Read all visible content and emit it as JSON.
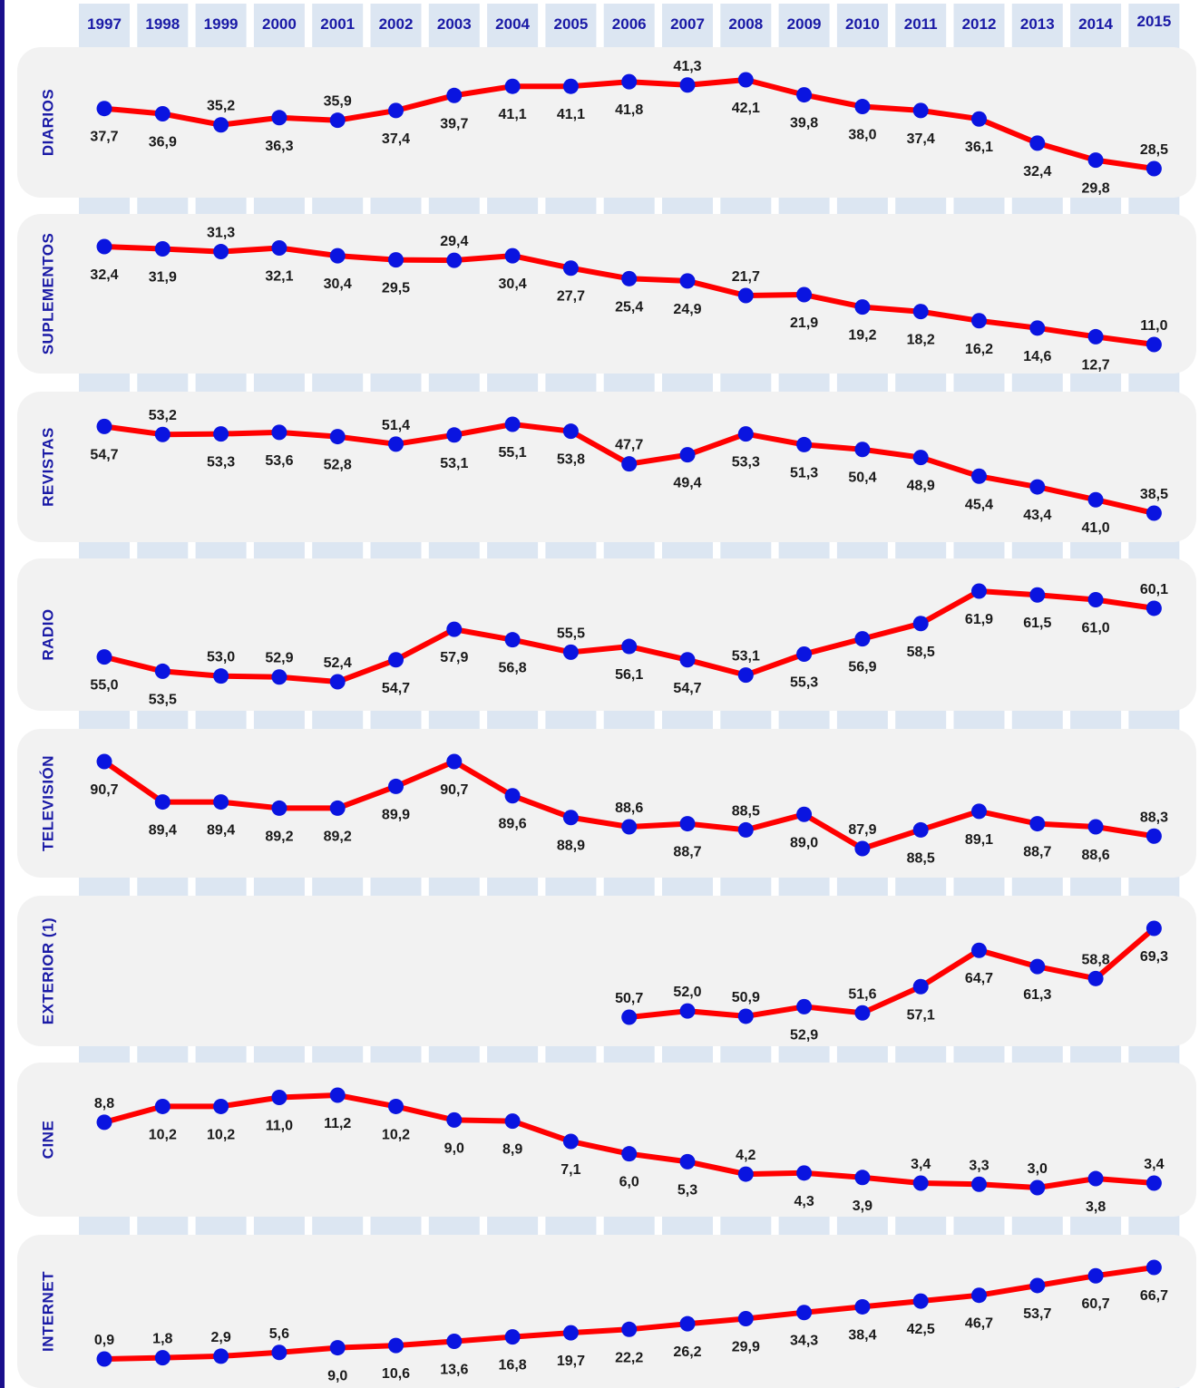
{
  "chart_data": {
    "type": "line",
    "x": [
      "1997",
      "1998",
      "1999",
      "2000",
      "2001",
      "2002",
      "2003",
      "2004",
      "2005",
      "2006",
      "2007",
      "2008",
      "2009",
      "2010",
      "2011",
      "2012",
      "2013",
      "2014",
      "2015"
    ],
    "colors": {
      "line": "#ff0000",
      "marker": "#0a14e0",
      "label_text": "#1a1aa6",
      "panel_bg": "#f2f2f2",
      "column_bg": "#dce6f2"
    },
    "grid": false,
    "series": [
      {
        "name": "DIARIOS",
        "values": [
          37.7,
          36.9,
          35.2,
          36.3,
          35.9,
          37.4,
          39.7,
          41.1,
          41.1,
          41.8,
          41.3,
          42.1,
          39.8,
          38.0,
          37.4,
          36.1,
          32.4,
          29.8,
          28.5
        ],
        "labels": [
          "37,7",
          "36,9",
          "35,2",
          "36,3",
          "35,9",
          "37,4",
          "39,7",
          "41,1",
          "41,1",
          "41,8",
          "41,3",
          "42,1",
          "39,8",
          "38,0",
          "37,4",
          "36,1",
          "32,4",
          "29,8",
          "28,5"
        ]
      },
      {
        "name": "SUPLEMENTOS",
        "values": [
          32.4,
          31.9,
          31.3,
          32.1,
          30.4,
          29.5,
          29.4,
          30.4,
          27.7,
          25.4,
          24.9,
          21.7,
          21.9,
          19.2,
          18.2,
          16.2,
          14.6,
          12.7,
          11.0
        ],
        "labels": [
          "32,4",
          "31,9",
          "31,3",
          "32,1",
          "30,4",
          "29,5",
          "29,4",
          "30,4",
          "27,7",
          "25,4",
          "24,9",
          "21,7",
          "21,9",
          "19,2",
          "18,2",
          "16,2",
          "14,6",
          "12,7",
          "11,0"
        ]
      },
      {
        "name": "REVISTAS",
        "values": [
          54.7,
          53.2,
          53.3,
          53.6,
          52.8,
          51.4,
          53.1,
          55.1,
          53.8,
          47.7,
          49.4,
          53.3,
          51.3,
          50.4,
          48.9,
          45.4,
          43.4,
          41.0,
          38.5
        ],
        "labels": [
          "54,7",
          "53,2",
          "53,3",
          "53,6",
          "52,8",
          "51,4",
          "53,1",
          "55,1",
          "53,8",
          "47,7",
          "49,4",
          "53,3",
          "51,3",
          "50,4",
          "48,9",
          "45,4",
          "43,4",
          "41,0",
          "38,5"
        ]
      },
      {
        "name": "RADIO",
        "values": [
          55.0,
          53.5,
          53.0,
          52.9,
          52.4,
          54.7,
          57.9,
          56.8,
          55.5,
          56.1,
          54.7,
          53.1,
          55.3,
          56.9,
          58.5,
          61.9,
          61.5,
          61.0,
          60.1
        ],
        "labels": [
          "55,0",
          "53,5",
          "53,0",
          "52,9",
          "52,4",
          "54,7",
          "57,9",
          "56,8",
          "55,5",
          "56,1",
          "54,7",
          "53,1",
          "55,3",
          "56,9",
          "58,5",
          "61,9",
          "61,5",
          "61,0",
          "60,1"
        ]
      },
      {
        "name": "TELEVISIÓN",
        "values": [
          90.7,
          89.4,
          89.4,
          89.2,
          89.2,
          89.9,
          90.7,
          89.6,
          88.9,
          88.6,
          88.7,
          88.5,
          89.0,
          87.9,
          88.5,
          89.1,
          88.7,
          88.6,
          88.3
        ],
        "labels": [
          "90,7",
          "89,4",
          "89,4",
          "89,2",
          "89,2",
          "89,9",
          "90,7",
          "89,6",
          "88,9",
          "88,6",
          "88,7",
          "88,5",
          "89,0",
          "87,9",
          "88,5",
          "89,1",
          "88,7",
          "88,6",
          "88,3"
        ]
      },
      {
        "name": "EXTERIOR (1)",
        "values": [
          null,
          null,
          null,
          null,
          null,
          null,
          null,
          null,
          null,
          50.7,
          52.0,
          50.9,
          52.9,
          51.6,
          57.1,
          64.7,
          61.3,
          58.8,
          69.3
        ],
        "labels": [
          null,
          null,
          null,
          null,
          null,
          null,
          null,
          null,
          null,
          "50,7",
          "52,0",
          "50,9",
          "52,9",
          "51,6",
          "57,1",
          "64,7",
          "61,3",
          "58,8",
          "69,3"
        ]
      },
      {
        "name": "CINE",
        "values": [
          8.8,
          10.2,
          10.2,
          11.0,
          11.2,
          10.2,
          9.0,
          8.9,
          7.1,
          6.0,
          5.3,
          4.2,
          4.3,
          3.9,
          3.4,
          3.3,
          3.0,
          3.8,
          3.4
        ],
        "labels": [
          "8,8",
          "10,2",
          "10,2",
          "11,0",
          "11,2",
          "10,2",
          "9,0",
          "8,9",
          "7,1",
          "6,0",
          "5,3",
          "4,2",
          "4,3",
          "3,9",
          "3,4",
          "3,3",
          "3,0",
          "3,8",
          "3,4"
        ]
      },
      {
        "name": "INTERNET",
        "values": [
          0.9,
          1.8,
          2.9,
          5.6,
          9.0,
          10.6,
          13.6,
          16.8,
          19.7,
          22.2,
          26.2,
          29.9,
          34.3,
          38.4,
          42.5,
          46.7,
          53.7,
          60.7,
          66.7
        ],
        "labels": [
          "0,9",
          "1,8",
          "2,9",
          "5,6",
          "9,0",
          "10,6",
          "13,6",
          "16,8",
          "19,7",
          "22,2",
          "26,2",
          "29,9",
          "34,3",
          "38,4",
          "42,5",
          "46,7",
          "53,7",
          "60,7",
          "66,7"
        ]
      }
    ]
  }
}
